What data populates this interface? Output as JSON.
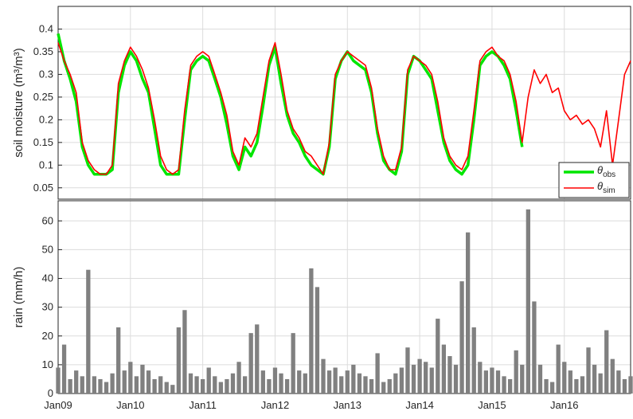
{
  "chart_data": [
    {
      "type": "line",
      "ylabel": "soil moisture (m³/m³)",
      "x": [
        "2009-01",
        "2009-02",
        "2009-03",
        "2009-04",
        "2009-05",
        "2009-06",
        "2009-07",
        "2009-08",
        "2009-09",
        "2009-10",
        "2009-11",
        "2009-12",
        "2010-01",
        "2010-02",
        "2010-03",
        "2010-04",
        "2010-05",
        "2010-06",
        "2010-07",
        "2010-08",
        "2010-09",
        "2010-10",
        "2010-11",
        "2010-12",
        "2011-01",
        "2011-02",
        "2011-03",
        "2011-04",
        "2011-05",
        "2011-06",
        "2011-07",
        "2011-08",
        "2011-09",
        "2011-10",
        "2011-11",
        "2011-12",
        "2012-01",
        "2012-02",
        "2012-03",
        "2012-04",
        "2012-05",
        "2012-06",
        "2012-07",
        "2012-08",
        "2012-09",
        "2012-10",
        "2012-11",
        "2012-12",
        "2013-01",
        "2013-02",
        "2013-03",
        "2013-04",
        "2013-05",
        "2013-06",
        "2013-07",
        "2013-08",
        "2013-09",
        "2013-10",
        "2013-11",
        "2013-12",
        "2014-01",
        "2014-02",
        "2014-03",
        "2014-04",
        "2014-05",
        "2014-06",
        "2014-07",
        "2014-08",
        "2014-09",
        "2014-10",
        "2014-11",
        "2014-12",
        "2015-01",
        "2015-02",
        "2015-03",
        "2015-04",
        "2015-05",
        "2015-06",
        "2015-07",
        "2015-08",
        "2015-09",
        "2015-10",
        "2015-11",
        "2015-12",
        "2016-01",
        "2016-02",
        "2016-03",
        "2016-04",
        "2016-05",
        "2016-06",
        "2016-07",
        "2016-08",
        "2016-09",
        "2016-10",
        "2016-11",
        "2016-12"
      ],
      "xlim": [
        "2009-01",
        "2016-12"
      ],
      "xticks": [
        "2009-01",
        "2010-01",
        "2011-01",
        "2012-01",
        "2013-01",
        "2014-01",
        "2015-01",
        "2016-01"
      ],
      "ylim": [
        0.025,
        0.45
      ],
      "yticks": [
        0.05,
        0.1,
        0.15,
        0.2,
        0.25,
        0.3,
        0.35,
        0.4
      ],
      "grid": true,
      "legend": "lower right",
      "series": [
        {
          "name": "θ",
          "subscript": "obs",
          "color": "#00e600",
          "values": [
            0.39,
            0.33,
            0.29,
            0.24,
            0.14,
            0.1,
            0.08,
            0.08,
            0.08,
            0.09,
            0.26,
            0.32,
            0.35,
            0.33,
            0.29,
            0.26,
            0.18,
            0.1,
            0.08,
            0.08,
            0.08,
            0.2,
            0.31,
            0.33,
            0.34,
            0.33,
            0.29,
            0.25,
            0.19,
            0.12,
            0.09,
            0.14,
            0.12,
            0.15,
            0.23,
            0.32,
            0.36,
            0.28,
            0.21,
            0.17,
            0.15,
            0.12,
            0.1,
            0.09,
            0.08,
            0.14,
            0.29,
            0.33,
            0.35,
            0.33,
            0.32,
            0.31,
            0.26,
            0.17,
            0.11,
            0.09,
            0.08,
            0.13,
            0.3,
            0.34,
            0.33,
            0.31,
            0.29,
            0.22,
            0.15,
            0.11,
            0.09,
            0.08,
            0.1,
            0.2,
            0.32,
            0.34,
            0.35,
            0.34,
            0.32,
            0.29,
            0.22,
            0.14,
            null,
            null,
            null,
            null,
            null,
            null,
            null,
            null,
            null,
            null,
            null,
            null,
            null,
            null,
            null,
            null,
            null,
            null
          ]
        },
        {
          "name": "θ",
          "subscript": "sim",
          "color": "#ff0000",
          "values": [
            0.37,
            0.33,
            0.3,
            0.26,
            0.15,
            0.11,
            0.09,
            0.08,
            0.08,
            0.1,
            0.28,
            0.33,
            0.36,
            0.34,
            0.31,
            0.27,
            0.2,
            0.12,
            0.09,
            0.08,
            0.09,
            0.22,
            0.32,
            0.34,
            0.35,
            0.34,
            0.3,
            0.26,
            0.21,
            0.13,
            0.1,
            0.16,
            0.14,
            0.17,
            0.25,
            0.33,
            0.37,
            0.3,
            0.22,
            0.18,
            0.16,
            0.13,
            0.12,
            0.1,
            0.08,
            0.15,
            0.3,
            0.33,
            0.35,
            0.34,
            0.33,
            0.32,
            0.27,
            0.18,
            0.12,
            0.09,
            0.09,
            0.14,
            0.31,
            0.34,
            0.33,
            0.32,
            0.3,
            0.24,
            0.16,
            0.12,
            0.1,
            0.09,
            0.12,
            0.22,
            0.33,
            0.35,
            0.36,
            0.34,
            0.33,
            0.3,
            0.24,
            0.15,
            0.25,
            0.31,
            0.28,
            0.3,
            0.26,
            0.27,
            0.22,
            0.2,
            0.21,
            0.19,
            0.2,
            0.18,
            0.14,
            0.22,
            0.1,
            0.2,
            0.3,
            0.33
          ]
        }
      ]
    },
    {
      "type": "bar",
      "ylabel": "rain (mm/h)",
      "color": "#808080",
      "x": [
        "2009-01",
        "2009-02",
        "2009-03",
        "2009-04",
        "2009-05",
        "2009-06",
        "2009-07",
        "2009-08",
        "2009-09",
        "2009-10",
        "2009-11",
        "2009-12",
        "2010-01",
        "2010-02",
        "2010-03",
        "2010-04",
        "2010-05",
        "2010-06",
        "2010-07",
        "2010-08",
        "2010-09",
        "2010-10",
        "2010-11",
        "2010-12",
        "2011-01",
        "2011-02",
        "2011-03",
        "2011-04",
        "2011-05",
        "2011-06",
        "2011-07",
        "2011-08",
        "2011-09",
        "2011-10",
        "2011-11",
        "2011-12",
        "2012-01",
        "2012-02",
        "2012-03",
        "2012-04",
        "2012-05",
        "2012-06",
        "2012-07",
        "2012-08",
        "2012-09",
        "2012-10",
        "2012-11",
        "2012-12",
        "2013-01",
        "2013-02",
        "2013-03",
        "2013-04",
        "2013-05",
        "2013-06",
        "2013-07",
        "2013-08",
        "2013-09",
        "2013-10",
        "2013-11",
        "2013-12",
        "2014-01",
        "2014-02",
        "2014-03",
        "2014-04",
        "2014-05",
        "2014-06",
        "2014-07",
        "2014-08",
        "2014-09",
        "2014-10",
        "2014-11",
        "2014-12",
        "2015-01",
        "2015-02",
        "2015-03",
        "2015-04",
        "2015-05",
        "2015-06",
        "2015-07",
        "2015-08",
        "2015-09",
        "2015-10",
        "2015-11",
        "2015-12",
        "2016-01",
        "2016-02",
        "2016-03",
        "2016-04",
        "2016-05",
        "2016-06",
        "2016-07",
        "2016-08",
        "2016-09",
        "2016-10",
        "2016-11",
        "2016-12"
      ],
      "values": [
        9,
        17,
        5,
        8,
        6,
        43,
        6,
        5,
        4,
        7,
        23,
        8,
        11,
        6,
        10,
        8,
        5,
        6,
        4,
        3,
        23,
        29,
        7,
        6,
        5,
        9,
        6,
        4,
        5,
        7,
        11,
        6,
        21,
        24,
        8,
        5,
        9,
        7,
        5,
        21,
        8,
        7,
        43.5,
        37,
        12,
        8,
        9,
        6,
        8,
        10,
        7,
        6,
        5,
        14,
        4,
        5,
        7,
        9,
        16,
        10,
        12,
        11,
        9,
        26,
        17,
        13,
        10,
        39,
        56,
        23,
        11,
        8,
        9,
        8,
        6,
        5,
        15,
        10,
        64,
        32,
        10,
        5,
        4,
        17,
        11,
        8,
        5,
        6,
        16,
        10,
        7,
        22,
        12,
        8,
        5,
        6
      ],
      "xlim": [
        "2009-01",
        "2016-12"
      ],
      "xticks": [
        {
          "value": "2009-01",
          "label": "Jan09"
        },
        {
          "value": "2010-01",
          "label": "Jan10"
        },
        {
          "value": "2011-01",
          "label": "Jan11"
        },
        {
          "value": "2012-01",
          "label": "Jan12"
        },
        {
          "value": "2013-01",
          "label": "Jan13"
        },
        {
          "value": "2014-01",
          "label": "Jan14"
        },
        {
          "value": "2015-01",
          "label": "Jan15"
        },
        {
          "value": "2016-01",
          "label": "Jan16"
        }
      ],
      "ylim": [
        0,
        67
      ],
      "yticks": [
        0,
        10,
        20,
        30,
        40,
        50,
        60
      ],
      "grid": true
    }
  ]
}
